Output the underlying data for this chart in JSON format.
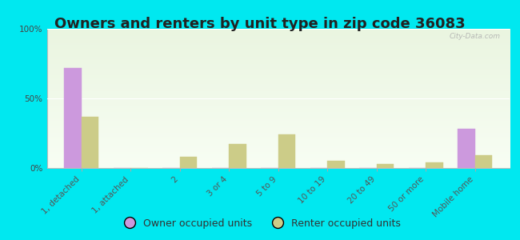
{
  "title": "Owners and renters by unit type in zip code 36083",
  "categories": [
    "1, detached",
    "1, attached",
    "2",
    "3 or 4",
    "5 to 9",
    "10 to 19",
    "20 to 49",
    "50 or more",
    "Mobile home"
  ],
  "owner_values": [
    72,
    0,
    0,
    0,
    0,
    0,
    0,
    0,
    28
  ],
  "renter_values": [
    37,
    0,
    8,
    17,
    24,
    5,
    3,
    4,
    9
  ],
  "owner_color": "#cc99dd",
  "renter_color": "#cccc88",
  "background_outer": "#00e8f0",
  "ylim": [
    0,
    100
  ],
  "yticks": [
    0,
    50,
    100
  ],
  "ytick_labels": [
    "0%",
    "50%",
    "100%"
  ],
  "bar_width": 0.35,
  "legend_owner": "Owner occupied units",
  "legend_renter": "Renter occupied units",
  "title_fontsize": 13,
  "tick_fontsize": 7.5,
  "legend_fontsize": 9,
  "watermark": "City-Data.com",
  "plot_bg_top": "#eaf5e0",
  "plot_bg_bottom": "#f8fef4"
}
